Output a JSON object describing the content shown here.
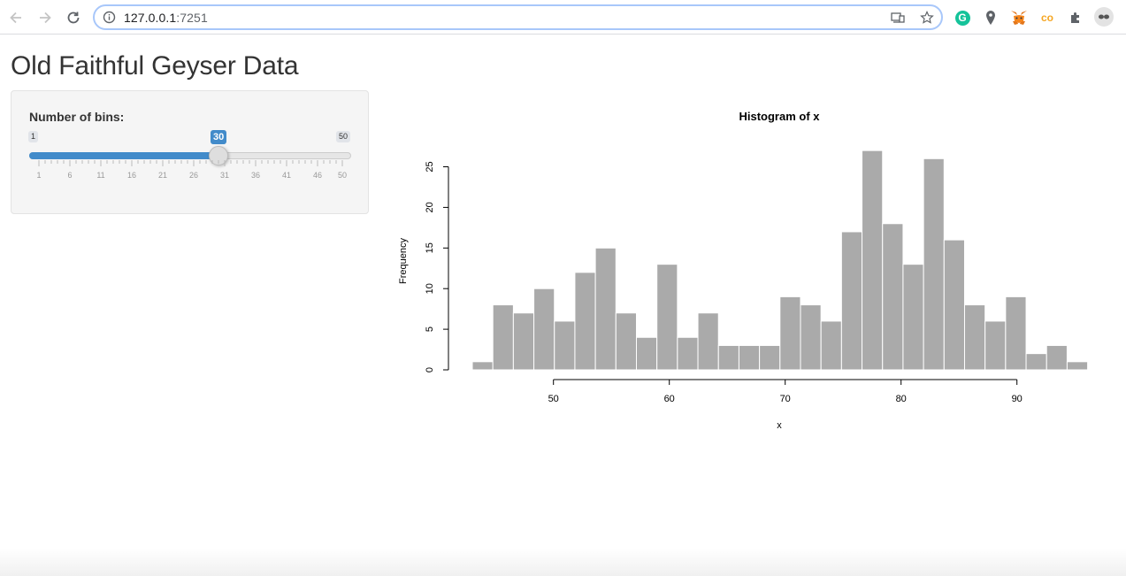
{
  "browser": {
    "url_host": "127.0.0.1",
    "url_port": ":7251",
    "icons": [
      "back-icon",
      "forward-icon",
      "reload-icon",
      "info-icon",
      "cast-icon",
      "bookmark-star-icon",
      "grammarly-icon",
      "maps-pin-icon",
      "metamask-icon",
      "co-icon",
      "extensions-icon",
      "profile-avatar-icon"
    ],
    "co_label": "co",
    "grammarly_label": "G"
  },
  "page": {
    "title": "Old Faithful Geyser Data"
  },
  "sidebar": {
    "slider": {
      "label": "Number of bins:",
      "min": 1,
      "max": 50,
      "value": 30,
      "min_label": "1",
      "max_label": "50",
      "value_label": "30",
      "tick_labels": [
        "1",
        "6",
        "11",
        "16",
        "21",
        "26",
        "31",
        "36",
        "41",
        "46",
        "50"
      ],
      "accent_color": "#428bca"
    }
  },
  "chart_data": {
    "type": "bar",
    "title": "Histogram of x",
    "xlabel": "x",
    "ylabel": "Frequency",
    "bin_start": 43.0,
    "bin_width": 1.77,
    "values": [
      1,
      8,
      7,
      10,
      6,
      12,
      15,
      7,
      4,
      13,
      4,
      7,
      3,
      3,
      3,
      9,
      8,
      6,
      17,
      27,
      18,
      13,
      26,
      16,
      8,
      6,
      9,
      2,
      3,
      1
    ],
    "xticks": [
      "50",
      "60",
      "70",
      "80",
      "90"
    ],
    "yticks": [
      "0",
      "5",
      "10",
      "15",
      "20",
      "25"
    ],
    "xlim": [
      43,
      96
    ],
    "ylim": [
      0,
      27
    ],
    "bar_color": "#aaaaaa",
    "grid": false
  }
}
